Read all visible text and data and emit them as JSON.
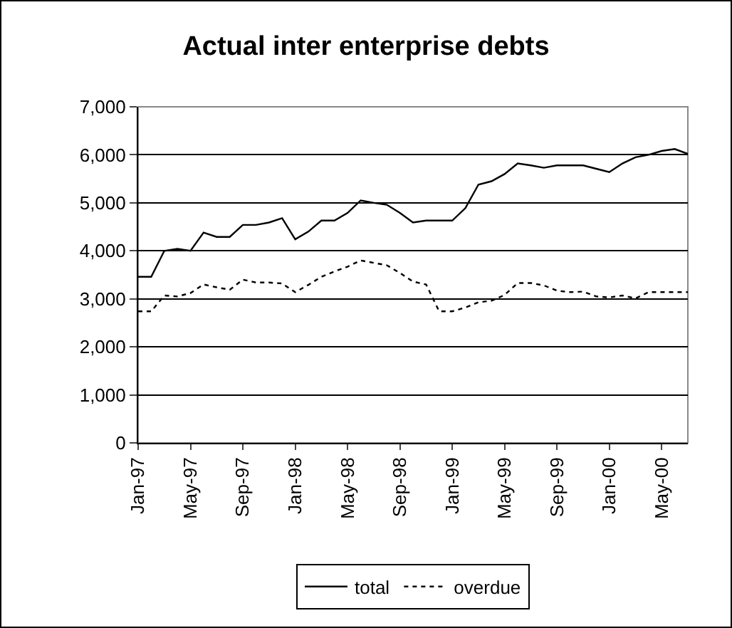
{
  "chart_data": {
    "type": "line",
    "title": "Actual inter enterprise debts",
    "categories": [
      "Jan-97",
      null,
      null,
      null,
      "May-97",
      null,
      null,
      null,
      "Sep-97",
      null,
      null,
      null,
      "Jan-98",
      null,
      null,
      null,
      "May-98",
      null,
      null,
      null,
      "Sep-98",
      null,
      null,
      null,
      "Jan-99",
      null,
      null,
      null,
      "May-99",
      null,
      null,
      null,
      "Sep-99",
      null,
      null,
      null,
      "Jan-00",
      null,
      null,
      null,
      "May-00",
      null,
      null
    ],
    "series": [
      {
        "name": "total",
        "color": "#000000",
        "line_style": "solid",
        "values": [
          3460,
          3460,
          4000,
          4040,
          4000,
          4380,
          4290,
          4290,
          4540,
          4540,
          4590,
          4680,
          4240,
          4400,
          4630,
          4630,
          4790,
          5050,
          5000,
          4960,
          4790,
          4590,
          4630,
          4630,
          4630,
          4890,
          5380,
          5450,
          5600,
          5820,
          5780,
          5730,
          5780,
          5780,
          5780,
          5710,
          5640,
          5820,
          5950,
          6000,
          6080,
          6120,
          6020
        ]
      },
      {
        "name": "overdue",
        "color": "#000000",
        "line_style": "dashed",
        "values": [
          2740,
          2740,
          3070,
          3050,
          3120,
          3300,
          3240,
          3190,
          3400,
          3340,
          3340,
          3320,
          3140,
          3290,
          3460,
          3570,
          3670,
          3800,
          3750,
          3700,
          3540,
          3360,
          3300,
          2740,
          2740,
          2820,
          2930,
          2960,
          3080,
          3330,
          3330,
          3280,
          3170,
          3140,
          3150,
          3050,
          3030,
          3070,
          3010,
          3140,
          3140,
          3140,
          3140
        ]
      }
    ],
    "ylim": [
      0,
      7000
    ],
    "yticks": [
      {
        "value": 0,
        "label": "0"
      },
      {
        "value": 1000,
        "label": "1,000"
      },
      {
        "value": 2000,
        "label": "2,000"
      },
      {
        "value": 3000,
        "label": "3,000"
      },
      {
        "value": 4000,
        "label": "4,000"
      },
      {
        "value": 5000,
        "label": "5,000"
      },
      {
        "value": 6000,
        "label": "6,000"
      },
      {
        "value": 7000,
        "label": "7,000"
      }
    ],
    "grid": "y",
    "legend": "bottom",
    "marker": "none"
  }
}
